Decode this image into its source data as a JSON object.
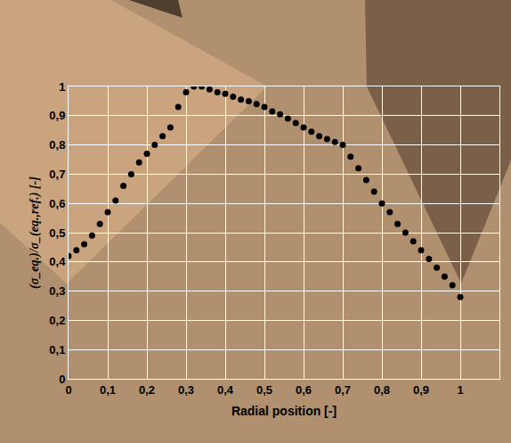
{
  "chart_data": {
    "type": "scatter",
    "x_label": "Radial position [-]",
    "y_label": "(σ_eq.)/σ_(eq.,ref.) [-]",
    "x": [
      0,
      0.02,
      0.04,
      0.06,
      0.08,
      0.1,
      0.12,
      0.14,
      0.16,
      0.18,
      0.2,
      0.22,
      0.24,
      0.26,
      0.28,
      0.3,
      0.32,
      0.34,
      0.36,
      0.38,
      0.4,
      0.42,
      0.44,
      0.46,
      0.48,
      0.5,
      0.52,
      0.54,
      0.56,
      0.58,
      0.6,
      0.62,
      0.64,
      0.66,
      0.68,
      0.7,
      0.72,
      0.74,
      0.76,
      0.78,
      0.8,
      0.82,
      0.84,
      0.86,
      0.88,
      0.9,
      0.92,
      0.94,
      0.96,
      0.98,
      1
    ],
    "values": [
      0.42,
      0.44,
      0.46,
      0.49,
      0.53,
      0.57,
      0.61,
      0.66,
      0.7,
      0.74,
      0.77,
      0.8,
      0.83,
      0.86,
      0.93,
      0.98,
      1.0,
      1.0,
      0.99,
      0.98,
      0.975,
      0.965,
      0.955,
      0.95,
      0.94,
      0.93,
      0.915,
      0.905,
      0.89,
      0.875,
      0.86,
      0.845,
      0.83,
      0.82,
      0.81,
      0.8,
      0.76,
      0.72,
      0.68,
      0.64,
      0.6,
      0.57,
      0.53,
      0.5,
      0.47,
      0.44,
      0.41,
      0.38,
      0.35,
      0.32,
      0.28
    ],
    "color": "#000000",
    "marker": "circle",
    "xlim": [
      0,
      1.1
    ],
    "xticks": [
      0,
      {
        "value": 0.1,
        "label": "0,1"
      },
      {
        "value": 0.2,
        "label": "0,2"
      },
      {
        "value": 0.3,
        "label": "0,3"
      },
      {
        "value": 0.4,
        "label": "0,4"
      },
      {
        "value": 0.5,
        "label": "0,5"
      },
      {
        "value": 0.6,
        "label": "0,6"
      },
      {
        "value": 0.7,
        "label": "0,7"
      },
      {
        "value": 0.8,
        "label": "0,8"
      },
      {
        "value": 0.9,
        "label": "0,9"
      },
      1
    ],
    "ylim": [
      0,
      1
    ],
    "yticks": [
      0,
      {
        "value": 0.1,
        "label": "0,1"
      },
      {
        "value": 0.2,
        "label": "0,2"
      },
      {
        "value": 0.3,
        "label": "0,3"
      },
      {
        "value": 0.4,
        "label": "0,4"
      },
      {
        "value": 0.5,
        "label": "0,5"
      },
      {
        "value": 0.6,
        "label": "0,6"
      },
      {
        "value": 0.7,
        "label": "0,7"
      },
      {
        "value": 0.8,
        "label": "0,8"
      },
      {
        "value": 0.9,
        "label": "0,9"
      },
      1
    ],
    "grid": true
  }
}
